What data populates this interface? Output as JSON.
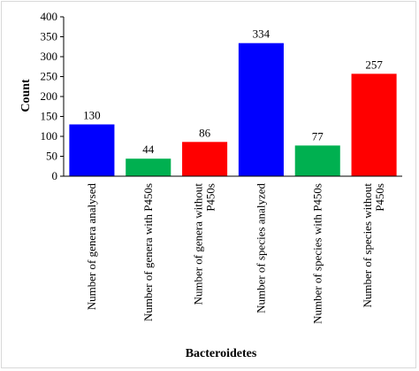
{
  "chart_data": {
    "type": "bar",
    "xlabel": "Bacteroidetes",
    "ylabel": "Count",
    "ylim": [
      0,
      400
    ],
    "yticks": [
      0,
      50,
      100,
      150,
      200,
      250,
      300,
      350,
      400
    ],
    "grid": false,
    "categories": [
      [
        "Number of genera analysed"
      ],
      [
        "Number of genera with P450s"
      ],
      [
        "Number of genera without",
        "P450s"
      ],
      [
        "Number of species analyzed"
      ],
      [
        "Number of species with P450s"
      ],
      [
        "Number of species without",
        "P450s"
      ]
    ],
    "values": [
      130,
      44,
      86,
      334,
      77,
      257
    ],
    "bar_colors": [
      "#0000ff",
      "#00b050",
      "#ff0000",
      "#0000ff",
      "#00b050",
      "#ff0000"
    ]
  }
}
